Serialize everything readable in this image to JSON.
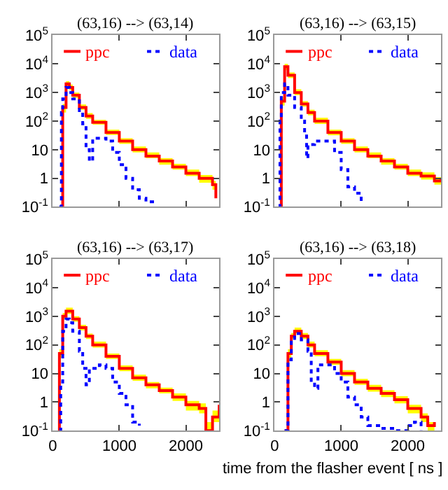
{
  "chart_data": [
    {
      "type": "step",
      "title": "(63,16) --> (63,14)",
      "xlim": [
        0,
        2500
      ],
      "ylim": [
        0.1,
        100000
      ],
      "log": "y",
      "xticks": [
        0,
        1000,
        2000
      ],
      "yticks": [
        {
          "value": 0.1,
          "label": "10$^{-1}$"
        },
        1,
        10,
        {
          "value": 100,
          "label": "10$^{2}$"
        },
        {
          "value": 1000,
          "label": "10$^{3}$"
        },
        {
          "value": 10000,
          "label": "10$^{4}$"
        },
        {
          "value": 100000,
          "label": "10$^{5}$"
        }
      ],
      "grid": false,
      "legend": "top",
      "tick_labels": "y",
      "series": [
        {
          "name": "ppc",
          "color": "#ff0000",
          "line_style": "solid",
          "x": [
            130,
            150,
            200,
            250,
            300,
            400,
            500,
            600,
            800,
            1000,
            1200,
            1400,
            1600,
            1800,
            2000,
            2200,
            2400,
            2450
          ],
          "values": [
            0.1,
            300,
            2000,
            1500,
            800,
            300,
            150,
            90,
            40,
            20,
            10,
            6,
            4,
            2.5,
            1.5,
            1,
            0.6,
            0.2
          ],
          "lower": [
            0.1,
            200,
            1500,
            1200,
            650,
            250,
            120,
            75,
            33,
            16,
            8,
            5,
            3,
            2,
            1.2,
            0.7,
            0.4,
            0.1
          ],
          "upper": [
            0.1,
            400,
            2500,
            1900,
            1000,
            380,
            190,
            110,
            50,
            25,
            13,
            8,
            5,
            3.2,
            2,
            1.3,
            0.8,
            0.3
          ]
        },
        {
          "name": "data",
          "color": "#0000ff",
          "line_style": "dotted",
          "x": [
            100,
            130,
            150,
            200,
            250,
            300,
            400,
            450,
            500,
            550,
            600,
            700,
            800,
            900,
            1000,
            1100,
            1200,
            1300,
            1400,
            1500
          ],
          "values": [
            0.1,
            200,
            600,
            1500,
            1000,
            600,
            200,
            80,
            10,
            4,
            25,
            25,
            20,
            8,
            3,
            1,
            0.4,
            0.2,
            0.15,
            0.1
          ]
        }
      ]
    },
    {
      "type": "step",
      "title": "(63,16) --> (63,15)",
      "xlim": [
        0,
        2500
      ],
      "ylim": [
        0.1,
        100000
      ],
      "log": "y",
      "xticks": [
        0,
        1000,
        2000
      ],
      "yticks": [
        {
          "value": 0.1,
          "label": "10$^{-1}$"
        },
        1,
        10,
        {
          "value": 100,
          "label": "10$^{2}$"
        },
        {
          "value": 1000,
          "label": "10$^{3}$"
        },
        {
          "value": 10000,
          "label": "10$^{4}$"
        },
        {
          "value": 100000,
          "label": "10$^{5}$"
        }
      ],
      "grid": false,
      "legend": "top",
      "tick_labels": "y",
      "series": [
        {
          "name": "ppc",
          "color": "#ff0000",
          "line_style": "solid",
          "x": [
            80,
            100,
            150,
            200,
            300,
            400,
            500,
            600,
            800,
            1000,
            1200,
            1400,
            1600,
            1800,
            2000,
            2200,
            2400,
            2500
          ],
          "values": [
            0.1,
            500,
            8000,
            4000,
            1000,
            400,
            200,
            100,
            40,
            20,
            10,
            6,
            4,
            2.5,
            1.5,
            1.2,
            0.8,
            1
          ],
          "lower": [
            0.1,
            350,
            6000,
            3200,
            800,
            320,
            160,
            80,
            32,
            16,
            8,
            5,
            3,
            2,
            1.2,
            0.9,
            0.6,
            0.7
          ],
          "upper": [
            0.1,
            700,
            10000,
            5000,
            1300,
            500,
            250,
            130,
            50,
            25,
            13,
            8,
            5,
            3.2,
            2,
            1.6,
            1.1,
            1.3
          ]
        },
        {
          "name": "data",
          "color": "#0000ff",
          "line_style": "dotted",
          "x": [
            60,
            80,
            100,
            150,
            200,
            300,
            400,
            450,
            480,
            500,
            600,
            800,
            900,
            1000,
            1100,
            1200,
            1300
          ],
          "values": [
            0.1,
            100,
            1000,
            2000,
            800,
            300,
            100,
            30,
            5,
            15,
            20,
            20,
            8,
            2,
            0.5,
            0.3,
            0.15
          ]
        }
      ]
    },
    {
      "type": "step",
      "title": "(63,16) --> (63,17)",
      "xlim": [
        0,
        2500
      ],
      "ylim": [
        0.1,
        100000
      ],
      "log": "y",
      "xticks": [
        0,
        1000,
        2000
      ],
      "yticks": [
        {
          "value": 0.1,
          "label": "10$^{-1}$"
        },
        1,
        10,
        {
          "value": 100,
          "label": "10$^{2}$"
        },
        {
          "value": 1000,
          "label": "10$^{3}$"
        },
        {
          "value": 10000,
          "label": "10$^{4}$"
        },
        {
          "value": 100000,
          "label": "10$^{5}$"
        }
      ],
      "grid": false,
      "legend": "top",
      "series": [
        {
          "name": "ppc",
          "color": "#ff0000",
          "line_style": "solid",
          "x": [
            80,
            100,
            150,
            200,
            300,
            400,
            500,
            600,
            800,
            1000,
            1200,
            1400,
            1600,
            1800,
            2000,
            2200,
            2300,
            2400,
            2500
          ],
          "values": [
            0.1,
            50,
            1000,
            1500,
            800,
            400,
            200,
            100,
            40,
            15,
            7,
            4,
            2.5,
            1.5,
            0.8,
            0.6,
            0.1,
            0.3,
            0.8
          ],
          "lower": [
            0.1,
            35,
            800,
            1200,
            650,
            320,
            160,
            80,
            32,
            12,
            5.5,
            3,
            2,
            1.1,
            0.5,
            0.4,
            0.1,
            0.2,
            0.5
          ],
          "upper": [
            0.1,
            70,
            1300,
            2000,
            1000,
            500,
            250,
            130,
            50,
            19,
            9,
            5,
            3.2,
            2,
            1.1,
            0.9,
            0.2,
            0.5,
            1.1
          ]
        },
        {
          "name": "data",
          "color": "#0000ff",
          "line_style": "dotted",
          "x": [
            100,
            120,
            150,
            200,
            250,
            300,
            400,
            450,
            500,
            550,
            700,
            800,
            900,
            1000,
            1100,
            1200,
            1300
          ],
          "values": [
            0.1,
            5,
            300,
            800,
            600,
            300,
            60,
            15,
            4,
            15,
            20,
            15,
            5,
            2,
            0.8,
            0.2,
            0.15
          ]
        }
      ]
    },
    {
      "type": "step",
      "title": "(63,16) --> (63,18)",
      "xlabel": "time from the flasher event [ ns ]",
      "xlim": [
        0,
        2500
      ],
      "ylim": [
        0.1,
        100000
      ],
      "log": "y",
      "xticks": [
        0,
        1000,
        2000
      ],
      "yticks": [
        {
          "value": 0.1,
          "label": "10$^{-1}$"
        },
        1,
        10,
        {
          "value": 100,
          "label": "10$^{2}$"
        },
        {
          "value": 1000,
          "label": "10$^{3}$"
        },
        {
          "value": 10000,
          "label": "10$^{4}$"
        },
        {
          "value": 100000,
          "label": "10$^{5}$"
        }
      ],
      "grid": false,
      "legend": "top",
      "series": [
        {
          "name": "ppc",
          "color": "#ff0000",
          "line_style": "solid",
          "x": [
            150,
            200,
            250,
            300,
            400,
            500,
            600,
            800,
            1000,
            1200,
            1400,
            1600,
            1800,
            2000,
            2200,
            2300,
            2400
          ],
          "values": [
            0.1,
            50,
            200,
            300,
            200,
            100,
            50,
            25,
            10,
            5,
            3,
            2,
            1.2,
            0.6,
            0.3,
            0.15,
            0.2
          ],
          "lower": [
            0.1,
            35,
            160,
            250,
            160,
            80,
            40,
            20,
            8,
            4,
            2.3,
            1.5,
            0.9,
            0.4,
            0.2,
            0.1,
            0.1
          ],
          "upper": [
            0.1,
            70,
            260,
            400,
            260,
            130,
            65,
            32,
            13,
            6.5,
            4,
            2.6,
            1.6,
            0.8,
            0.4,
            0.2,
            0.3
          ]
        },
        {
          "name": "data",
          "color": "#0000ff",
          "line_style": "dotted",
          "x": [
            150,
            200,
            250,
            300,
            400,
            500,
            550,
            600,
            650,
            800,
            900,
            1000,
            1100,
            1200,
            1300,
            1400,
            1600,
            1800,
            2000,
            2100,
            2200
          ],
          "values": [
            0.1,
            30,
            150,
            250,
            150,
            60,
            5,
            3,
            20,
            20,
            10,
            5,
            1.5,
            0.8,
            0.3,
            0.15,
            0.12,
            0.1,
            0.15,
            0.2,
            0.1
          ]
        }
      ]
    }
  ]
}
